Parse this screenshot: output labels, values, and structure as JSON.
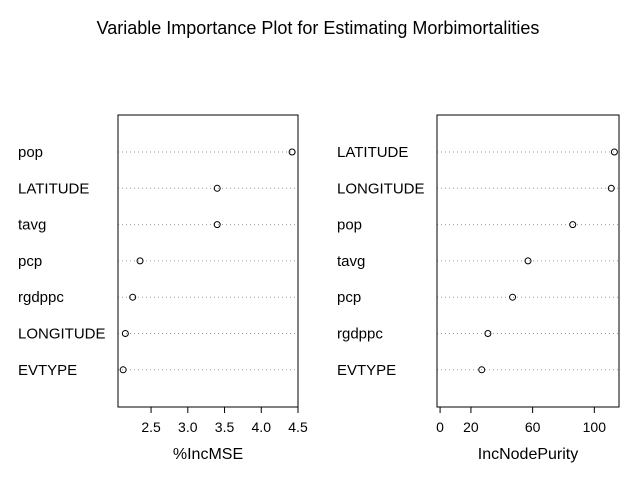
{
  "title": "Variable Importance Plot for Estimating Morbimortalities",
  "chart_data": [
    {
      "type": "scatter",
      "subtype": "dotchart",
      "xlabel": "%IncMSE",
      "xlim": [
        2.05,
        4.5
      ],
      "xticks": [
        2.5,
        3.0,
        3.5,
        4.0,
        4.5
      ],
      "xtick_labels": [
        "2.5",
        "3.0",
        "3.5",
        "4.0",
        "4.5"
      ],
      "grid": "dotted horizontal guide lines",
      "marker": "open circle",
      "points": [
        {
          "label": "pop",
          "value": 4.42
        },
        {
          "label": "LATITUDE",
          "value": 3.4
        },
        {
          "label": "tavg",
          "value": 3.4
        },
        {
          "label": "pcp",
          "value": 2.35
        },
        {
          "label": "rgdppc",
          "value": 2.25
        },
        {
          "label": "LONGITUDE",
          "value": 2.15
        },
        {
          "label": "EVTYPE",
          "value": 2.12
        }
      ]
    },
    {
      "type": "scatter",
      "subtype": "dotchart",
      "xlabel": "IncNodePurity",
      "xlim": [
        -2,
        116
      ],
      "xticks": [
        0,
        20,
        60,
        100
      ],
      "xtick_labels": [
        "0",
        "20",
        "60",
        "100"
      ],
      "grid": "dotted horizontal guide lines",
      "marker": "open circle",
      "points": [
        {
          "label": "LATITUDE",
          "value": 113
        },
        {
          "label": "LONGITUDE",
          "value": 111
        },
        {
          "label": "pop",
          "value": 86
        },
        {
          "label": "tavg",
          "value": 57
        },
        {
          "label": "pcp",
          "value": 47
        },
        {
          "label": "rgdppc",
          "value": 31
        },
        {
          "label": "EVTYPE",
          "value": 27
        }
      ]
    }
  ]
}
